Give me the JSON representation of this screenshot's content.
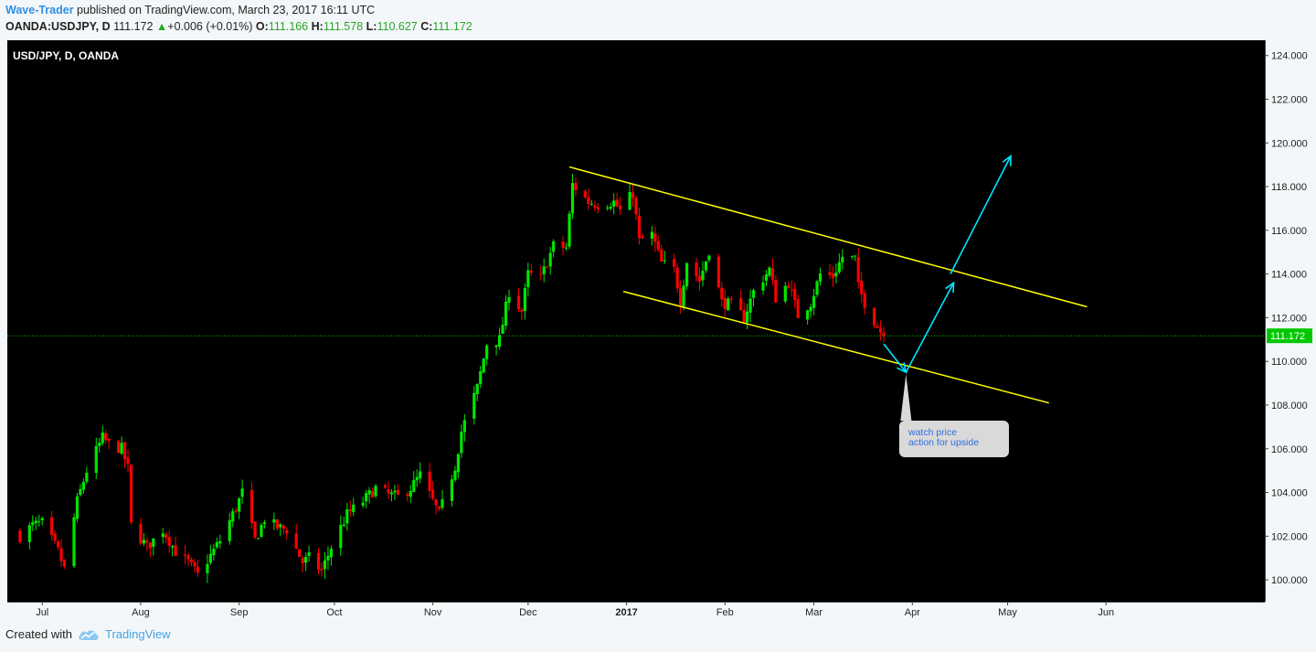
{
  "header": {
    "author": "Wave-Trader",
    "published": " published on TradingView.com, March 23, 2017 16:11 UTC"
  },
  "ohlc": {
    "symbol": "OANDA:USDJPY, D",
    "last": "111.172",
    "change_arrow": "▲",
    "change": "+0.006 (+0.01%)",
    "o_label": "O:",
    "o": "111.166",
    "h_label": "H:",
    "h": "111.578",
    "l_label": "L:",
    "l": "110.627",
    "c_label": "C:",
    "c": "111.172"
  },
  "footer": {
    "created_with": "Created with",
    "brand": "TradingView",
    "brand_icon": "tradingview-cloud-icon"
  },
  "colors": {
    "background": "#000000",
    "up_candle": "#00e600",
    "down_candle": "#ff0000",
    "channel_line": "#ffff00",
    "projection_arrow": "#00e5ff",
    "price_line": "#00c800",
    "axis_text": "#222222",
    "callout_bg": "#d9d9d9",
    "callout_text": "#2f6fdc"
  },
  "chart_data": {
    "type": "candlestick",
    "title": "USD/JPY, D, OANDA",
    "xlabel": "",
    "ylabel": "",
    "ylim": [
      99.0,
      124.7
    ],
    "y_ticks": [
      "100.000",
      "102.000",
      "104.000",
      "106.000",
      "108.000",
      "110.000",
      "112.000",
      "114.000",
      "116.000",
      "118.000",
      "120.000",
      "122.000",
      "124.000"
    ],
    "x_range": [
      "2016-06-20",
      "2017-07-21"
    ],
    "x_ticks": [
      {
        "label": "Jul",
        "date": "2016-07-01",
        "bold": false
      },
      {
        "label": "Aug",
        "date": "2016-08-01",
        "bold": false
      },
      {
        "label": "Sep",
        "date": "2016-09-01",
        "bold": false
      },
      {
        "label": "Oct",
        "date": "2016-10-01",
        "bold": false
      },
      {
        "label": "Nov",
        "date": "2016-11-01",
        "bold": false
      },
      {
        "label": "Dec",
        "date": "2016-12-01",
        "bold": false
      },
      {
        "label": "2017",
        "date": "2017-01-01",
        "bold": true
      },
      {
        "label": "Feb",
        "date": "2017-02-01",
        "bold": false
      },
      {
        "label": "Mar",
        "date": "2017-03-01",
        "bold": false
      },
      {
        "label": "Apr",
        "date": "2017-04-01",
        "bold": false
      },
      {
        "label": "May",
        "date": "2017-05-01",
        "bold": false
      },
      {
        "label": "Jun",
        "date": "2017-06-01",
        "bold": false
      }
    ],
    "current_price": 111.172,
    "current_price_label": "111.172",
    "price_anchors": [
      [
        "2016-06-24",
        102.0
      ],
      [
        "2016-06-28",
        102.5
      ],
      [
        "2016-07-01",
        102.6
      ],
      [
        "2016-07-06",
        101.3
      ],
      [
        "2016-07-08",
        100.5
      ],
      [
        "2016-07-12",
        103.6
      ],
      [
        "2016-07-15",
        105.0
      ],
      [
        "2016-07-20",
        106.5
      ],
      [
        "2016-07-22",
        106.2
      ],
      [
        "2016-07-26",
        106.0
      ],
      [
        "2016-07-28",
        105.1
      ],
      [
        "2016-07-29",
        102.5
      ],
      [
        "2016-08-03",
        101.5
      ],
      [
        "2016-08-08",
        102.3
      ],
      [
        "2016-08-12",
        101.3
      ],
      [
        "2016-08-16",
        100.8
      ],
      [
        "2016-08-19",
        100.2
      ],
      [
        "2016-08-26",
        101.8
      ],
      [
        "2016-08-31",
        103.3
      ],
      [
        "2016-09-02",
        104.0
      ],
      [
        "2016-09-06",
        101.8
      ],
      [
        "2016-09-09",
        102.8
      ],
      [
        "2016-09-13",
        102.4
      ],
      [
        "2016-09-16",
        102.3
      ],
      [
        "2016-09-21",
        100.8
      ],
      [
        "2016-09-23",
        101.0
      ],
      [
        "2016-09-27",
        100.4
      ],
      [
        "2016-09-30",
        101.5
      ],
      [
        "2016-10-05",
        103.0
      ],
      [
        "2016-10-10",
        103.6
      ],
      [
        "2016-10-14",
        104.2
      ],
      [
        "2016-10-18",
        103.9
      ],
      [
        "2016-10-21",
        103.8
      ],
      [
        "2016-10-25",
        104.2
      ],
      [
        "2016-10-28",
        104.8
      ],
      [
        "2016-11-03",
        103.0
      ],
      [
        "2016-11-08",
        105.2
      ],
      [
        "2016-11-10",
        106.8
      ],
      [
        "2016-11-15",
        108.8
      ],
      [
        "2016-11-18",
        110.8
      ],
      [
        "2016-11-22",
        111.0
      ],
      [
        "2016-11-25",
        113.2
      ],
      [
        "2016-11-29",
        112.3
      ],
      [
        "2016-12-01",
        114.0
      ],
      [
        "2016-12-05",
        113.8
      ],
      [
        "2016-12-09",
        115.3
      ],
      [
        "2016-12-13",
        115.2
      ],
      [
        "2016-12-15",
        118.1
      ],
      [
        "2016-12-20",
        117.3
      ],
      [
        "2016-12-23",
        117.2
      ],
      [
        "2016-12-28",
        117.3
      ],
      [
        "2016-12-30",
        116.9
      ],
      [
        "2017-01-03",
        117.7
      ],
      [
        "2017-01-05",
        115.5
      ],
      [
        "2017-01-09",
        115.8
      ],
      [
        "2017-01-12",
        114.5
      ],
      [
        "2017-01-16",
        114.2
      ],
      [
        "2017-01-18",
        112.8
      ],
      [
        "2017-01-20",
        114.6
      ],
      [
        "2017-01-24",
        113.7
      ],
      [
        "2017-01-27",
        115.1
      ],
      [
        "2017-01-31",
        112.7
      ],
      [
        "2017-02-03",
        112.6
      ],
      [
        "2017-02-07",
        112.0
      ],
      [
        "2017-02-10",
        113.2
      ],
      [
        "2017-02-15",
        114.2
      ],
      [
        "2017-02-17",
        112.9
      ],
      [
        "2017-02-21",
        113.6
      ],
      [
        "2017-02-24",
        112.1
      ],
      [
        "2017-02-28",
        112.7
      ],
      [
        "2017-03-03",
        114.0
      ],
      [
        "2017-03-07",
        113.9
      ],
      [
        "2017-03-10",
        114.8
      ],
      [
        "2017-03-14",
        114.7
      ],
      [
        "2017-03-15",
        113.4
      ],
      [
        "2017-03-17",
        112.7
      ],
      [
        "2017-03-21",
        111.6
      ],
      [
        "2017-03-23",
        111.172
      ]
    ],
    "annotations": [
      {
        "type": "trendline",
        "name": "upper-channel-line",
        "from": [
          "2016-12-14",
          118.9
        ],
        "to": [
          "2017-05-26",
          112.5
        ]
      },
      {
        "type": "trendline",
        "name": "lower-channel-line",
        "from": [
          "2016-12-31",
          113.2
        ],
        "to": [
          "2017-05-14",
          108.1
        ]
      },
      {
        "type": "arrow",
        "name": "projection-arrow-down",
        "from": [
          "2017-03-23",
          110.8
        ],
        "to": [
          "2017-03-30",
          109.5
        ]
      },
      {
        "type": "arrow",
        "name": "projection-arrow-up-1",
        "from": [
          "2017-03-30",
          109.5
        ],
        "to": [
          "2017-04-14",
          113.6
        ]
      },
      {
        "type": "arrow",
        "name": "projection-arrow-up-2",
        "from": [
          "2017-04-13",
          114.0
        ],
        "to": [
          "2017-05-02",
          119.4
        ]
      },
      {
        "type": "callout",
        "name": "watch-price-callout",
        "anchor": [
          "2017-03-30",
          109.5
        ],
        "lines": [
          "watch price",
          "action for upside"
        ]
      }
    ]
  }
}
